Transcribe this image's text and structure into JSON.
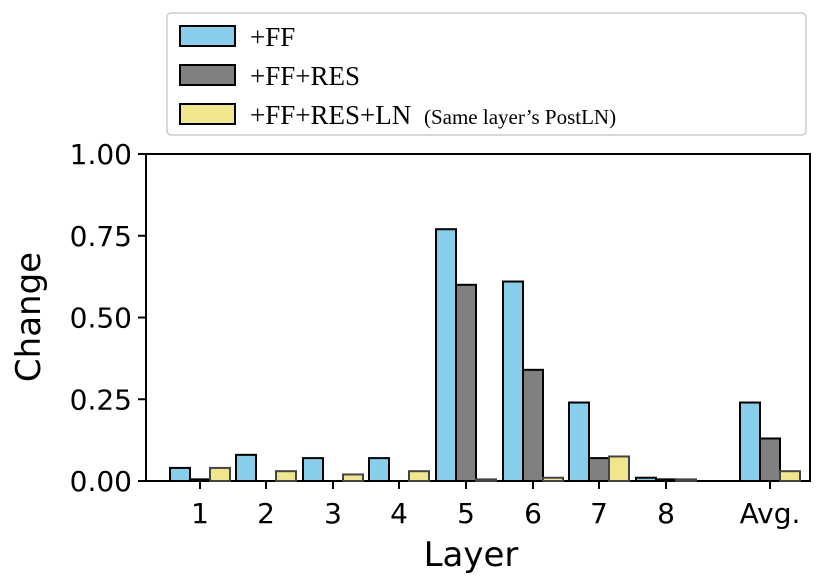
{
  "chart_data": {
    "type": "bar",
    "xlabel": "Layer",
    "ylabel": "Change",
    "ylim": [
      0,
      1.0
    ],
    "yticks": [
      "0.00",
      "0.25",
      "0.50",
      "0.75",
      "1.00"
    ],
    "ytick_values": [
      0,
      0.25,
      0.5,
      0.75,
      1.0
    ],
    "categories": [
      "1",
      "2",
      "3",
      "4",
      "5",
      "6",
      "7",
      "8",
      "Avg."
    ],
    "grid": false,
    "legend_position": "top",
    "series": [
      {
        "name": "+FF",
        "color": "#87CEEB",
        "values": [
          0.04,
          0.08,
          0.07,
          0.07,
          0.77,
          0.61,
          0.24,
          0.01,
          0.24
        ]
      },
      {
        "name": "+FF+RES",
        "color": "#808080",
        "values": [
          0.005,
          0.0,
          0.0,
          0.0,
          0.6,
          0.34,
          0.07,
          0.005,
          0.13
        ]
      },
      {
        "name": "+FF+RES+LN",
        "color": "#F0E68C",
        "values": [
          0.04,
          0.03,
          0.02,
          0.03,
          0.005,
          0.01,
          0.075,
          0.005,
          0.03
        ]
      }
    ],
    "legend": {
      "entries": [
        {
          "main": "+FF",
          "note": ""
        },
        {
          "main": "+FF+RES",
          "note": ""
        },
        {
          "main": "+FF+RES+LN",
          "note": "(Same layer’s PostLN)"
        }
      ]
    }
  }
}
